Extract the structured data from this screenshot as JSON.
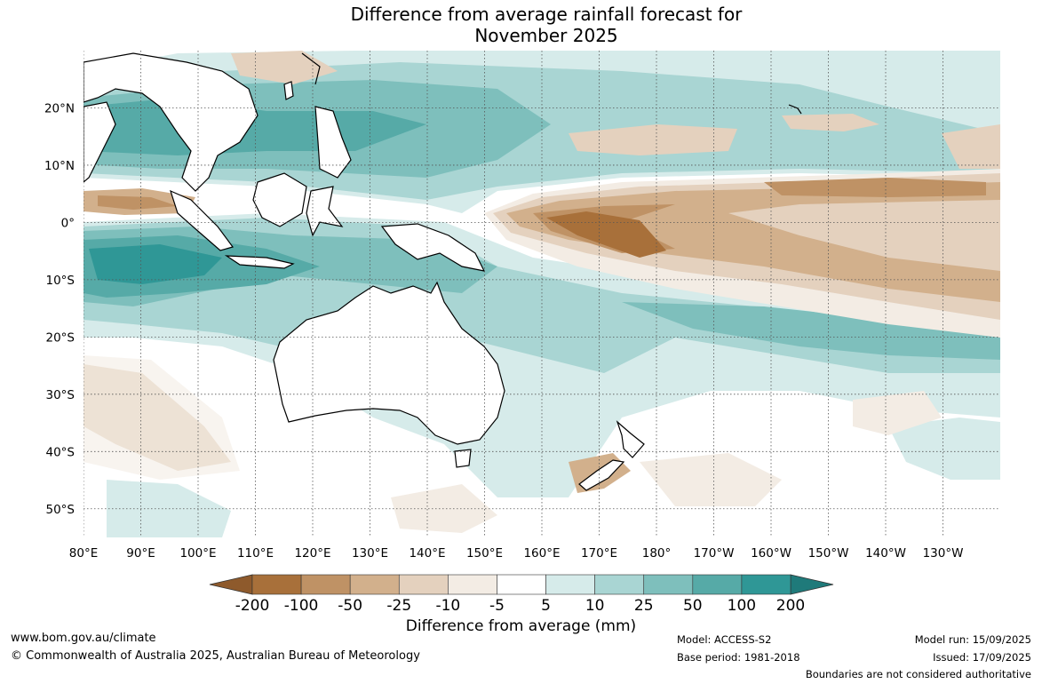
{
  "title_line1": "Difference from average rainfall forecast for",
  "title_line2": "November 2025",
  "map": {
    "lon_labels": [
      "80°E",
      "90°E",
      "100°E",
      "110°E",
      "120°E",
      "130°E",
      "140°E",
      "150°E",
      "160°E",
      "170°E",
      "180°",
      "170°W",
      "160°W",
      "150°W",
      "140°W",
      "130°W"
    ],
    "lat_labels": [
      "20°N",
      "10°N",
      "0°",
      "10°S",
      "20°S",
      "30°S",
      "40°S",
      "50°S"
    ],
    "lon_range": [
      80,
      240
    ],
    "lat_range": [
      -55,
      30
    ],
    "gridlines": true
  },
  "colorbar": {
    "title": "Difference from average (mm)",
    "ticks": [
      "-200",
      "-100",
      "-50",
      "-25",
      "-10",
      "-5",
      "5",
      "10",
      "25",
      "50",
      "100",
      "200"
    ],
    "colors": [
      "#a8703a",
      "#bf9265",
      "#d2b08c",
      "#e4d1be",
      "#f3ece4",
      "#ffffff",
      "#d6ebea",
      "#a9d5d3",
      "#7ebfbc",
      "#56aaa7",
      "#2f9796"
    ],
    "extend_low_color": "#8e5a2c",
    "extend_high_color": "#1f7a7a"
  },
  "footer": {
    "url": "www.bom.gov.au/climate",
    "copyright": "© Commonwealth of Australia 2025, Australian Bureau of Meteorology",
    "model": "Model: ACCESS-S2",
    "base_period": "Base period: 1981-2018",
    "model_run": "Model run: 15/09/2025",
    "issued": "Issued: 17/09/2025",
    "disclaimer": "Boundaries are not considered authoritative"
  }
}
